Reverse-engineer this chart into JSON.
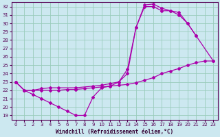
{
  "xlabel": "Windchill (Refroidissement éolien,°C)",
  "background_color": "#cce8f0",
  "line_color": "#aa00aa",
  "grid_color": "#99ccbb",
  "xlim": [
    -0.5,
    23.5
  ],
  "ylim": [
    18.5,
    32.5
  ],
  "xticks": [
    0,
    1,
    2,
    3,
    4,
    5,
    6,
    7,
    8,
    9,
    10,
    11,
    12,
    13,
    14,
    15,
    16,
    17,
    18,
    19,
    20,
    21,
    22,
    23
  ],
  "yticks": [
    19,
    20,
    21,
    22,
    23,
    24,
    25,
    26,
    27,
    28,
    29,
    30,
    31,
    32
  ],
  "line1_x": [
    0,
    1,
    2,
    3,
    4,
    5,
    6,
    7,
    8,
    9,
    10,
    11,
    12,
    13,
    14,
    15,
    16,
    17,
    18,
    19,
    20,
    21
  ],
  "line1_y": [
    23.0,
    22.0,
    21.5,
    21.0,
    20.5,
    20.0,
    19.5,
    19.0,
    19.0,
    21.2,
    22.3,
    22.5,
    23.0,
    24.5,
    29.5,
    32.2,
    32.3,
    31.8,
    31.5,
    31.0,
    30.0,
    28.5
  ],
  "line2_x": [
    0,
    1,
    2,
    3,
    4,
    5,
    6,
    7,
    8,
    9,
    10,
    11,
    12,
    13,
    14,
    15,
    16,
    17,
    18,
    19,
    20,
    21,
    22,
    23
  ],
  "line2_y": [
    23.0,
    22.0,
    22.0,
    22.0,
    22.0,
    22.0,
    22.1,
    22.1,
    22.2,
    22.3,
    22.4,
    22.5,
    22.6,
    22.7,
    22.9,
    23.2,
    23.5,
    24.0,
    24.3,
    24.6,
    25.0,
    25.3,
    25.5,
    25.5
  ],
  "line3_x": [
    0,
    1,
    2,
    3,
    4,
    5,
    7,
    9,
    10,
    11,
    12,
    13,
    14,
    15,
    16,
    17,
    18,
    19,
    20,
    21,
    23
  ],
  "line3_y": [
    23.0,
    22.0,
    22.0,
    22.2,
    22.3,
    22.3,
    22.3,
    22.5,
    22.6,
    22.8,
    23.0,
    24.0,
    29.5,
    32.0,
    32.0,
    31.5,
    31.5,
    31.3,
    30.0,
    28.5,
    25.5
  ]
}
